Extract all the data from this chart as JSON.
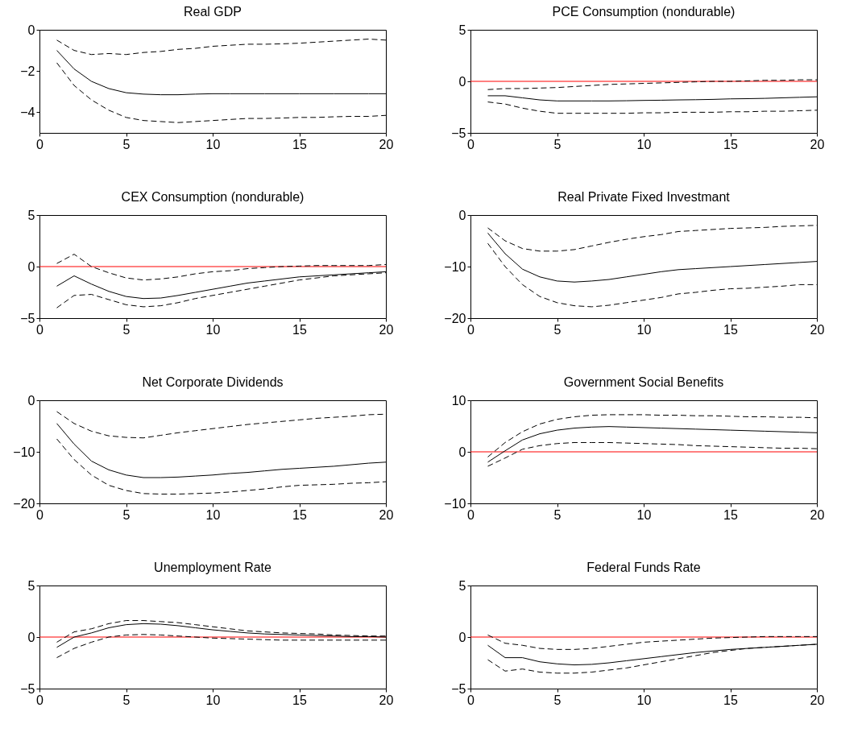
{
  "chart_data": [
    {
      "type": "line",
      "title": "Real GDP",
      "x": [
        1,
        2,
        3,
        4,
        5,
        6,
        7,
        8,
        9,
        10,
        11,
        12,
        13,
        14,
        15,
        16,
        17,
        18,
        19,
        20
      ],
      "xlim": [
        0,
        20
      ],
      "xticks": [
        0,
        5,
        10,
        15,
        20
      ],
      "ylim": [
        -5,
        0
      ],
      "yticks": [
        -4,
        -2,
        0
      ],
      "series": [
        {
          "color": "#000000",
          "line_style": "solid",
          "values": [
            -1.0,
            -1.9,
            -2.5,
            -2.85,
            -3.05,
            -3.12,
            -3.15,
            -3.15,
            -3.12,
            -3.1,
            -3.1,
            -3.1,
            -3.1,
            -3.1,
            -3.1,
            -3.1,
            -3.1,
            -3.1,
            -3.1,
            -3.1
          ]
        },
        {
          "color": "#000000",
          "line_style": "dashed",
          "values": [
            -0.5,
            -1.0,
            -1.2,
            -1.15,
            -1.2,
            -1.1,
            -1.05,
            -0.95,
            -0.9,
            -0.8,
            -0.75,
            -0.7,
            -0.7,
            -0.68,
            -0.65,
            -0.6,
            -0.55,
            -0.5,
            -0.45,
            -0.5
          ]
        },
        {
          "color": "#000000",
          "line_style": "dashed",
          "values": [
            -1.6,
            -2.7,
            -3.4,
            -3.9,
            -4.25,
            -4.4,
            -4.45,
            -4.5,
            -4.45,
            -4.4,
            -4.35,
            -4.3,
            -4.3,
            -4.28,
            -4.25,
            -4.25,
            -4.22,
            -4.2,
            -4.2,
            -4.15
          ]
        }
      ]
    },
    {
      "type": "line",
      "title": "PCE Consumption (nondurable)",
      "x": [
        1,
        2,
        3,
        4,
        5,
        6,
        7,
        8,
        9,
        10,
        11,
        12,
        13,
        14,
        15,
        16,
        17,
        18,
        19,
        20
      ],
      "xlim": [
        0,
        20
      ],
      "xticks": [
        0,
        5,
        10,
        15,
        20
      ],
      "ylim": [
        -5,
        5
      ],
      "yticks": [
        -5,
        0,
        5
      ],
      "ref_lines": [
        {
          "axis": "y",
          "value": 0,
          "color": "#ff0000"
        }
      ],
      "series": [
        {
          "color": "#000000",
          "line_style": "solid",
          "values": [
            -1.4,
            -1.4,
            -1.6,
            -1.8,
            -1.9,
            -1.9,
            -1.9,
            -1.9,
            -1.88,
            -1.85,
            -1.83,
            -1.8,
            -1.78,
            -1.75,
            -1.7,
            -1.68,
            -1.65,
            -1.6,
            -1.55,
            -1.5
          ]
        },
        {
          "color": "#000000",
          "line_style": "dashed",
          "values": [
            -0.8,
            -0.7,
            -0.7,
            -0.65,
            -0.6,
            -0.5,
            -0.4,
            -0.3,
            -0.25,
            -0.2,
            -0.15,
            -0.1,
            -0.05,
            0,
            0,
            0.05,
            0.1,
            0.1,
            0.15,
            0.15
          ]
        },
        {
          "color": "#000000",
          "line_style": "dashed",
          "values": [
            -2.0,
            -2.2,
            -2.6,
            -2.9,
            -3.1,
            -3.1,
            -3.1,
            -3.1,
            -3.1,
            -3.05,
            -3.05,
            -3.0,
            -3.0,
            -3.0,
            -2.95,
            -2.95,
            -2.9,
            -2.9,
            -2.85,
            -2.8
          ]
        }
      ]
    },
    {
      "type": "line",
      "title": "CEX Consumption (nondurable)",
      "x": [
        1,
        2,
        3,
        4,
        5,
        6,
        7,
        8,
        9,
        10,
        11,
        12,
        13,
        14,
        15,
        16,
        17,
        18,
        19,
        20
      ],
      "xlim": [
        0,
        20
      ],
      "xticks": [
        0,
        5,
        10,
        15,
        20
      ],
      "ylim": [
        -5,
        5
      ],
      "yticks": [
        -5,
        0,
        5
      ],
      "ref_lines": [
        {
          "axis": "y",
          "value": 0,
          "color": "#ff0000"
        }
      ],
      "series": [
        {
          "color": "#000000",
          "line_style": "solid",
          "values": [
            -1.9,
            -0.9,
            -1.7,
            -2.4,
            -2.9,
            -3.1,
            -3.05,
            -2.8,
            -2.5,
            -2.2,
            -1.9,
            -1.6,
            -1.4,
            -1.2,
            -1.0,
            -0.9,
            -0.8,
            -0.7,
            -0.6,
            -0.5
          ]
        },
        {
          "color": "#000000",
          "line_style": "dashed",
          "values": [
            0.3,
            1.2,
            0.0,
            -0.6,
            -1.1,
            -1.3,
            -1.2,
            -1.0,
            -0.7,
            -0.5,
            -0.4,
            -0.2,
            -0.1,
            0,
            0.05,
            0.1,
            0.1,
            0.1,
            0.1,
            0.2
          ]
        },
        {
          "color": "#000000",
          "line_style": "dashed",
          "values": [
            -4.0,
            -2.8,
            -2.7,
            -3.2,
            -3.7,
            -3.9,
            -3.8,
            -3.5,
            -3.1,
            -2.8,
            -2.5,
            -2.2,
            -1.9,
            -1.6,
            -1.3,
            -1.1,
            -0.9,
            -0.8,
            -0.7,
            -0.6
          ]
        }
      ]
    },
    {
      "type": "line",
      "title": "Real Private Fixed Investmant",
      "x": [
        1,
        2,
        3,
        4,
        5,
        6,
        7,
        8,
        9,
        10,
        11,
        12,
        13,
        14,
        15,
        16,
        17,
        18,
        19,
        20
      ],
      "xlim": [
        0,
        20
      ],
      "xticks": [
        0,
        5,
        10,
        15,
        20
      ],
      "ylim": [
        -20,
        0
      ],
      "yticks": [
        -20,
        -10,
        0
      ],
      "series": [
        {
          "color": "#000000",
          "line_style": "solid",
          "values": [
            -3.5,
            -7.5,
            -10.5,
            -12,
            -12.8,
            -13,
            -12.8,
            -12.5,
            -12,
            -11.5,
            -11,
            -10.6,
            -10.4,
            -10.2,
            -10,
            -9.8,
            -9.6,
            -9.4,
            -9.2,
            -9.0
          ]
        },
        {
          "color": "#000000",
          "line_style": "dashed",
          "values": [
            -2.5,
            -5,
            -6.5,
            -7,
            -7,
            -6.7,
            -6,
            -5.3,
            -4.7,
            -4.2,
            -3.8,
            -3.2,
            -3,
            -2.8,
            -2.6,
            -2.5,
            -2.4,
            -2.2,
            -2.1,
            -2.0
          ]
        },
        {
          "color": "#000000",
          "line_style": "dashed",
          "values": [
            -5.5,
            -10,
            -13.5,
            -15.8,
            -17,
            -17.6,
            -17.8,
            -17.5,
            -17,
            -16.5,
            -16,
            -15.3,
            -15,
            -14.6,
            -14.3,
            -14.2,
            -14,
            -13.8,
            -13.5,
            -13.5
          ]
        }
      ]
    },
    {
      "type": "line",
      "title": "Net Corporate Dividends",
      "x": [
        1,
        2,
        3,
        4,
        5,
        6,
        7,
        8,
        9,
        10,
        11,
        12,
        13,
        14,
        15,
        16,
        17,
        18,
        19,
        20
      ],
      "xlim": [
        0,
        20
      ],
      "xticks": [
        0,
        5,
        10,
        15,
        20
      ],
      "ylim": [
        -20,
        0
      ],
      "yticks": [
        -20,
        -10,
        0
      ],
      "series": [
        {
          "color": "#000000",
          "line_style": "solid",
          "values": [
            -4.5,
            -8.5,
            -11.8,
            -13.5,
            -14.5,
            -15,
            -15,
            -14.9,
            -14.7,
            -14.5,
            -14.2,
            -14,
            -13.7,
            -13.4,
            -13.2,
            -13,
            -12.8,
            -12.5,
            -12.2,
            -12
          ]
        },
        {
          "color": "#000000",
          "line_style": "dashed",
          "values": [
            -2.2,
            -4.5,
            -6,
            -6.9,
            -7.2,
            -7.3,
            -6.8,
            -6.3,
            -5.9,
            -5.5,
            -5.1,
            -4.7,
            -4.4,
            -4.1,
            -3.8,
            -3.5,
            -3.3,
            -3.1,
            -2.8,
            -2.7
          ]
        },
        {
          "color": "#000000",
          "line_style": "dashed",
          "values": [
            -7.5,
            -11.5,
            -14.5,
            -16.5,
            -17.5,
            -18.1,
            -18.2,
            -18.2,
            -18.1,
            -18,
            -17.8,
            -17.5,
            -17.2,
            -16.8,
            -16.5,
            -16.4,
            -16.3,
            -16.1,
            -16,
            -15.8
          ]
        }
      ]
    },
    {
      "type": "line",
      "title": "Government Social Benefits",
      "x": [
        1,
        2,
        3,
        4,
        5,
        6,
        7,
        8,
        9,
        10,
        11,
        12,
        13,
        14,
        15,
        16,
        17,
        18,
        19,
        20
      ],
      "xlim": [
        0,
        20
      ],
      "xticks": [
        0,
        5,
        10,
        15,
        20
      ],
      "ylim": [
        -10,
        10
      ],
      "yticks": [
        -10,
        0,
        10
      ],
      "ref_lines": [
        {
          "axis": "y",
          "value": 0,
          "color": "#ff0000"
        }
      ],
      "series": [
        {
          "color": "#000000",
          "line_style": "solid",
          "values": [
            -2,
            0.2,
            2.3,
            3.5,
            4.2,
            4.6,
            4.8,
            4.9,
            4.8,
            4.7,
            4.6,
            4.5,
            4.4,
            4.3,
            4.2,
            4.1,
            4,
            3.9,
            3.8,
            3.7
          ]
        },
        {
          "color": "#000000",
          "line_style": "dashed",
          "values": [
            -1,
            1.8,
            3.9,
            5.4,
            6.3,
            6.8,
            7.1,
            7.2,
            7.2,
            7.2,
            7.1,
            7.1,
            7,
            7,
            6.9,
            6.8,
            6.8,
            6.7,
            6.7,
            6.6
          ]
        },
        {
          "color": "#000000",
          "line_style": "dashed",
          "values": [
            -2.8,
            -1.2,
            0.5,
            1.2,
            1.6,
            1.8,
            1.8,
            1.8,
            1.7,
            1.6,
            1.5,
            1.4,
            1.2,
            1.1,
            1,
            0.9,
            0.8,
            0.7,
            0.7,
            0.6
          ]
        }
      ]
    },
    {
      "type": "line",
      "title": "Unemployment Rate",
      "x": [
        1,
        2,
        3,
        4,
        5,
        6,
        7,
        8,
        9,
        10,
        11,
        12,
        13,
        14,
        15,
        16,
        17,
        18,
        19,
        20
      ],
      "xlim": [
        0,
        20
      ],
      "xticks": [
        0,
        5,
        10,
        15,
        20
      ],
      "ylim": [
        -5,
        5
      ],
      "yticks": [
        -5,
        0,
        5
      ],
      "ref_lines": [
        {
          "axis": "y",
          "value": 0,
          "color": "#ff0000"
        }
      ],
      "series": [
        {
          "color": "#000000",
          "line_style": "solid",
          "values": [
            -1,
            0,
            0.4,
            0.9,
            1.2,
            1.3,
            1.25,
            1.1,
            0.9,
            0.7,
            0.55,
            0.4,
            0.3,
            0.25,
            0.2,
            0.15,
            0.1,
            0.05,
            0.05,
            0
          ]
        },
        {
          "color": "#000000",
          "line_style": "dashed",
          "values": [
            -0.5,
            0.5,
            0.8,
            1.3,
            1.6,
            1.6,
            1.5,
            1.4,
            1.2,
            1.0,
            0.8,
            0.6,
            0.5,
            0.4,
            0.35,
            0.3,
            0.2,
            0.15,
            0.1,
            0.1
          ]
        },
        {
          "color": "#000000",
          "line_style": "dashed",
          "values": [
            -2,
            -1.1,
            -0.5,
            0,
            0.2,
            0.25,
            0.2,
            0.1,
            0,
            -0.1,
            -0.15,
            -0.2,
            -0.25,
            -0.3,
            -0.3,
            -0.3,
            -0.3,
            -0.3,
            -0.3,
            -0.3
          ]
        }
      ]
    },
    {
      "type": "line",
      "title": "Federal Funds Rate",
      "x": [
        1,
        2,
        3,
        4,
        5,
        6,
        7,
        8,
        9,
        10,
        11,
        12,
        13,
        14,
        15,
        16,
        17,
        18,
        19,
        20
      ],
      "xlim": [
        0,
        20
      ],
      "xticks": [
        0,
        5,
        10,
        15,
        20
      ],
      "ylim": [
        -5,
        5
      ],
      "yticks": [
        -5,
        0,
        5
      ],
      "ref_lines": [
        {
          "axis": "y",
          "value": 0,
          "color": "#ff0000"
        }
      ],
      "series": [
        {
          "color": "#000000",
          "line_style": "solid",
          "values": [
            -0.8,
            -2,
            -2.0,
            -2.4,
            -2.6,
            -2.7,
            -2.65,
            -2.5,
            -2.3,
            -2.1,
            -1.9,
            -1.7,
            -1.5,
            -1.35,
            -1.2,
            -1.1,
            -1.0,
            -0.9,
            -0.8,
            -0.7
          ]
        },
        {
          "color": "#000000",
          "line_style": "dashed",
          "values": [
            0.2,
            -0.6,
            -0.8,
            -1.1,
            -1.2,
            -1.2,
            -1.1,
            -0.9,
            -0.7,
            -0.5,
            -0.4,
            -0.3,
            -0.2,
            -0.1,
            -0.05,
            0,
            0.05,
            0.05,
            0.05,
            0.05
          ]
        },
        {
          "color": "#000000",
          "line_style": "dashed",
          "values": [
            -2.2,
            -3.3,
            -3.1,
            -3.4,
            -3.5,
            -3.5,
            -3.4,
            -3.2,
            -3.0,
            -2.7,
            -2.4,
            -2.1,
            -1.8,
            -1.5,
            -1.3,
            -1.1,
            -1.0,
            -0.9,
            -0.8,
            -0.7
          ]
        }
      ]
    }
  ]
}
